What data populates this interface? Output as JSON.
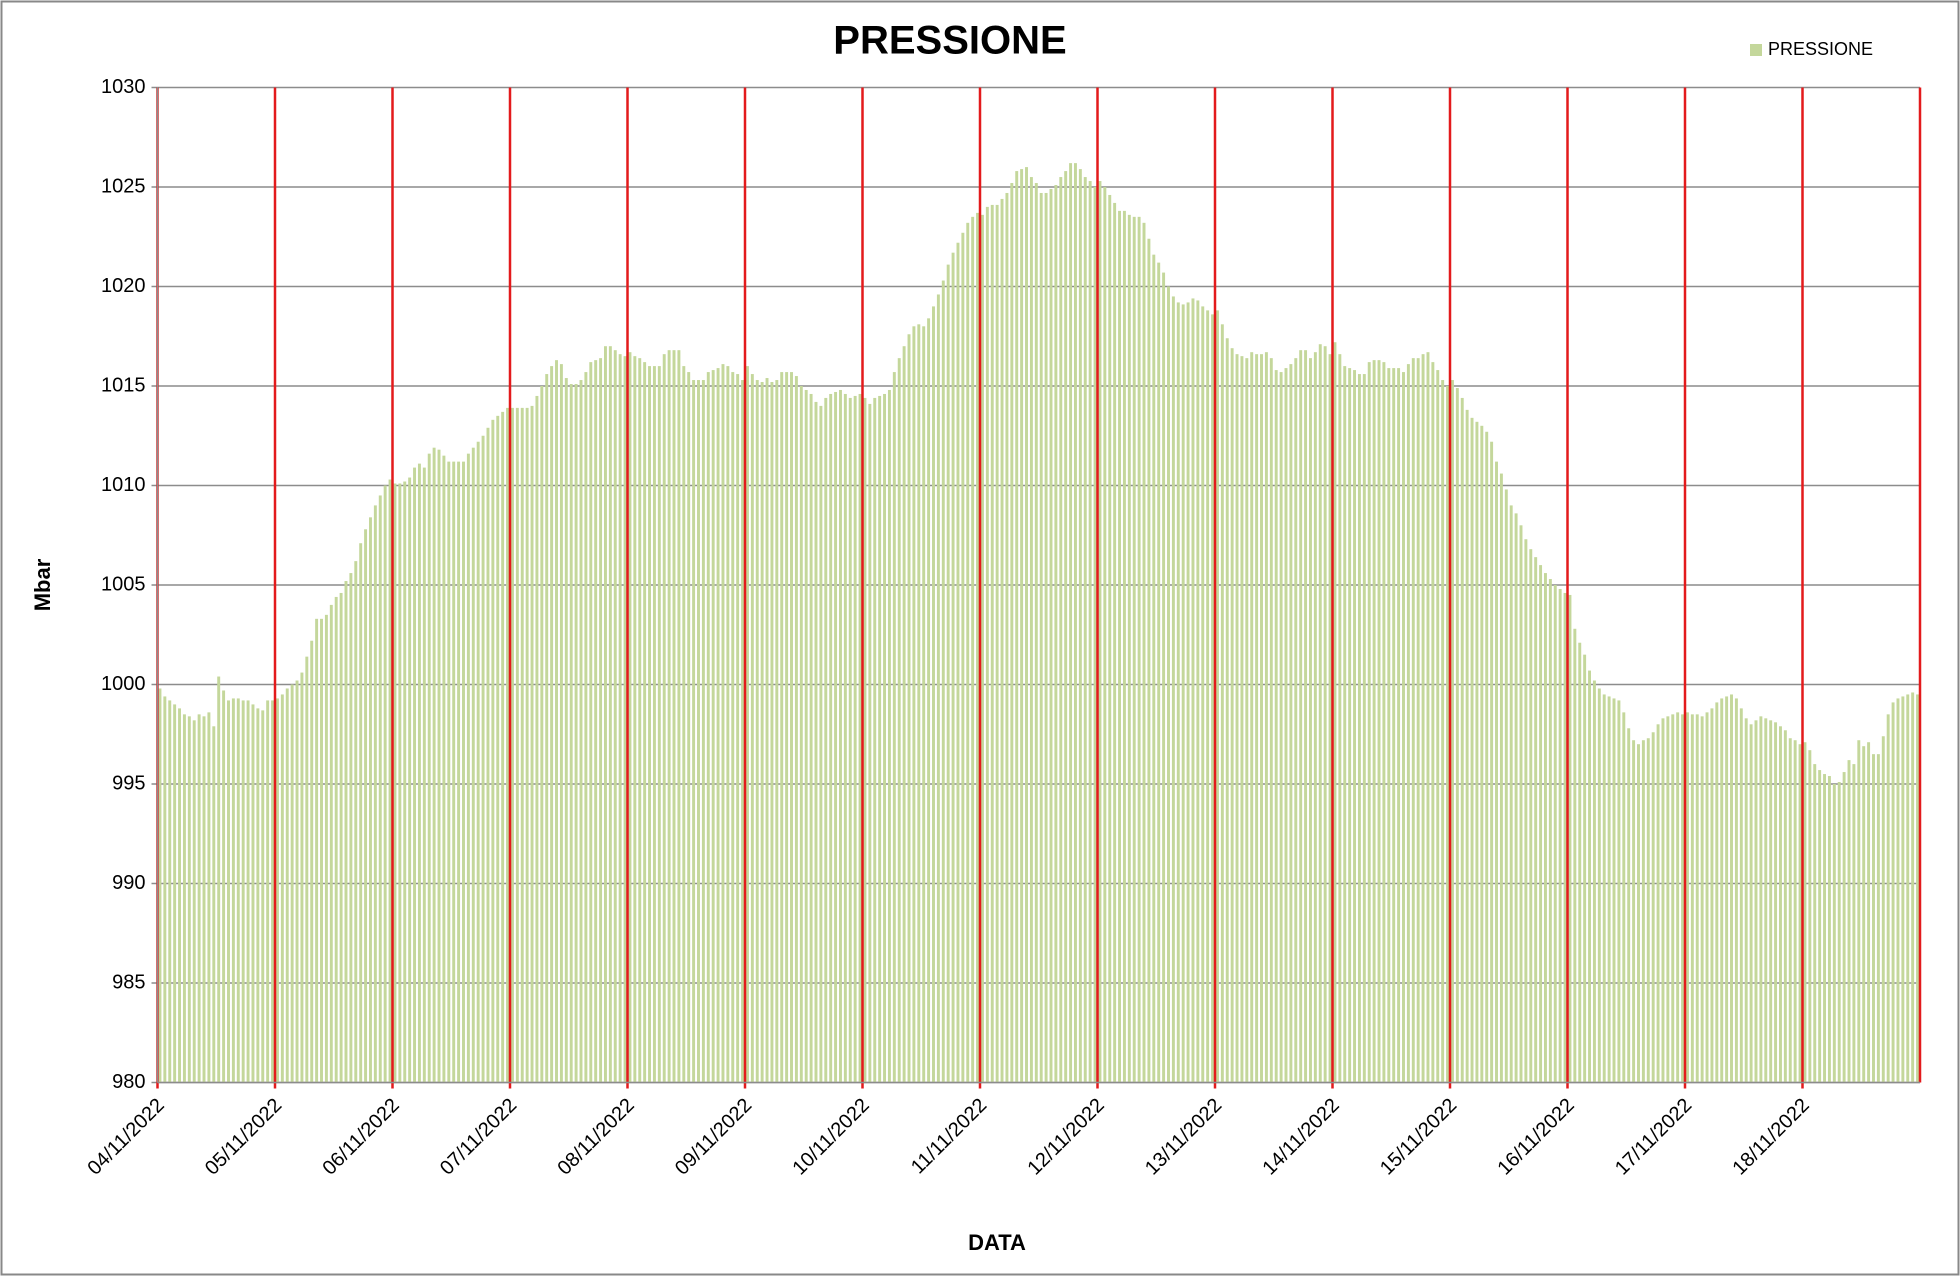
{
  "chart_data": {
    "type": "bar",
    "title": "PRESSIONE",
    "x_label": "DATA",
    "y_label": "Mbar",
    "series": [
      {
        "name": "PRESSIONE",
        "color": "#c4d79b",
        "values": [
          999.8,
          999.4,
          999.2,
          999.0,
          998.8,
          998.5,
          998.4,
          998.2,
          998.5,
          998.4,
          998.6,
          997.9,
          1000.4,
          999.7,
          999.2,
          999.3,
          999.3,
          999.2,
          999.2,
          999.0,
          998.8,
          998.7,
          999.2,
          999.2,
          999.3,
          999.5,
          999.8,
          1000.0,
          1000.2,
          1000.6,
          1001.4,
          1002.2,
          1003.3,
          1003.3,
          1003.5,
          1004.0,
          1004.4,
          1004.6,
          1005.2,
          1005.6,
          1006.2,
          1007.1,
          1007.8,
          1008.4,
          1009.0,
          1009.5,
          1010.0,
          1010.3,
          1010.1,
          1010.1,
          1010.2,
          1010.4,
          1010.9,
          1011.1,
          1010.9,
          1011.6,
          1011.9,
          1011.8,
          1011.5,
          1011.2,
          1011.2,
          1011.2,
          1011.2,
          1011.6,
          1011.9,
          1012.2,
          1012.5,
          1012.9,
          1013.3,
          1013.5,
          1013.7,
          1013.9,
          1013.9,
          1013.9,
          1013.9,
          1013.9,
          1014.0,
          1014.5,
          1015.0,
          1015.6,
          1016.0,
          1016.3,
          1016.1,
          1015.4,
          1015.1,
          1015.1,
          1015.3,
          1015.7,
          1016.2,
          1016.3,
          1016.4,
          1017.0,
          1017.0,
          1016.8,
          1016.6,
          1016.5,
          1016.7,
          1016.5,
          1016.4,
          1016.2,
          1016.0,
          1016.0,
          1016.0,
          1016.6,
          1016.8,
          1016.8,
          1016.8,
          1016.0,
          1015.7,
          1015.3,
          1015.3,
          1015.3,
          1015.7,
          1015.8,
          1015.9,
          1016.1,
          1016.0,
          1015.7,
          1015.6,
          1015.3,
          1016.0,
          1015.6,
          1015.3,
          1015.2,
          1015.4,
          1015.2,
          1015.3,
          1015.7,
          1015.7,
          1015.7,
          1015.5,
          1015.0,
          1014.8,
          1014.6,
          1014.2,
          1014.0,
          1014.4,
          1014.6,
          1014.7,
          1014.8,
          1014.6,
          1014.4,
          1014.5,
          1014.6,
          1014.4,
          1014.1,
          1014.4,
          1014.5,
          1014.6,
          1014.8,
          1015.7,
          1016.4,
          1017.0,
          1017.6,
          1018.0,
          1018.1,
          1018.0,
          1018.4,
          1019.0,
          1019.6,
          1020.3,
          1021.1,
          1021.7,
          1022.2,
          1022.7,
          1023.2,
          1023.5,
          1023.7,
          1023.6,
          1024.0,
          1024.1,
          1024.1,
          1024.4,
          1024.7,
          1025.2,
          1025.8,
          1025.9,
          1026.0,
          1025.5,
          1025.2,
          1024.7,
          1024.7,
          1024.9,
          1025.1,
          1025.5,
          1025.8,
          1026.2,
          1026.2,
          1025.9,
          1025.5,
          1025.3,
          1025.0,
          1025.3,
          1025.0,
          1024.6,
          1024.2,
          1023.8,
          1023.8,
          1023.6,
          1023.5,
          1023.5,
          1023.2,
          1022.4,
          1021.6,
          1021.2,
          1020.7,
          1020.0,
          1019.5,
          1019.2,
          1019.1,
          1019.2,
          1019.4,
          1019.3,
          1019.0,
          1018.8,
          1018.6,
          1018.8,
          1018.1,
          1017.4,
          1016.9,
          1016.6,
          1016.5,
          1016.4,
          1016.7,
          1016.6,
          1016.6,
          1016.7,
          1016.4,
          1015.8,
          1015.7,
          1015.9,
          1016.1,
          1016.4,
          1016.8,
          1016.8,
          1016.4,
          1016.7,
          1017.1,
          1017.0,
          1016.6,
          1017.2,
          1016.6,
          1016.0,
          1015.9,
          1015.8,
          1015.6,
          1015.6,
          1016.2,
          1016.3,
          1016.3,
          1016.2,
          1015.9,
          1015.9,
          1015.9,
          1015.7,
          1016.1,
          1016.4,
          1016.4,
          1016.6,
          1016.7,
          1016.2,
          1015.8,
          1015.3,
          1015.0,
          1015.3,
          1014.9,
          1014.4,
          1013.8,
          1013.4,
          1013.2,
          1013.0,
          1012.7,
          1012.2,
          1011.2,
          1010.6,
          1009.8,
          1009.0,
          1008.6,
          1008.0,
          1007.3,
          1006.8,
          1006.4,
          1006.0,
          1005.6,
          1005.3,
          1005.0,
          1004.8,
          1004.6,
          1004.5,
          1002.8,
          1002.1,
          1001.5,
          1000.7,
          1000.2,
          999.8,
          999.5,
          999.4,
          999.3,
          999.2,
          998.6,
          997.8,
          997.2,
          997.0,
          997.2,
          997.3,
          997.6,
          998.0,
          998.3,
          998.4,
          998.5,
          998.6,
          998.5,
          998.6,
          998.5,
          998.5,
          998.4,
          998.6,
          998.8,
          999.1,
          999.3,
          999.4,
          999.5,
          999.3,
          998.8,
          998.3,
          998.0,
          998.2,
          998.4,
          998.3,
          998.2,
          998.1,
          997.9,
          997.7,
          997.3,
          997.2,
          997.0,
          997.1,
          996.7,
          996.0,
          995.7,
          995.5,
          995.4,
          995.0,
          995.1,
          995.6,
          996.2,
          996.0,
          997.2,
          996.9,
          997.1,
          996.5,
          996.5,
          997.4,
          998.5,
          999.1,
          999.3,
          999.4,
          999.5,
          999.6,
          999.5
        ]
      }
    ],
    "categories": [
      "04/11/2022",
      null,
      null,
      null,
      null,
      null,
      null,
      null,
      null,
      null,
      null,
      null,
      null,
      null,
      null,
      null,
      null,
      null,
      null,
      null,
      null,
      null,
      null,
      null,
      "05/11/2022",
      null,
      null,
      null,
      null,
      null,
      null,
      null,
      null,
      null,
      null,
      null,
      null,
      null,
      null,
      null,
      null,
      null,
      null,
      null,
      null,
      null,
      null,
      null,
      "06/11/2022",
      null,
      null,
      null,
      null,
      null,
      null,
      null,
      null,
      null,
      null,
      null,
      null,
      null,
      null,
      null,
      null,
      null,
      null,
      null,
      null,
      null,
      null,
      null,
      "07/11/2022",
      null,
      null,
      null,
      null,
      null,
      null,
      null,
      null,
      null,
      null,
      null,
      null,
      null,
      null,
      null,
      null,
      null,
      null,
      null,
      null,
      null,
      null,
      null,
      "08/11/2022",
      null,
      null,
      null,
      null,
      null,
      null,
      null,
      null,
      null,
      null,
      null,
      null,
      null,
      null,
      null,
      null,
      null,
      null,
      null,
      null,
      null,
      null,
      null,
      "09/11/2022",
      null,
      null,
      null,
      null,
      null,
      null,
      null,
      null,
      null,
      null,
      null,
      null,
      null,
      null,
      null,
      null,
      null,
      null,
      null,
      null,
      null,
      null,
      null,
      "10/11/2022",
      null,
      null,
      null,
      null,
      null,
      null,
      null,
      null,
      null,
      null,
      null,
      null,
      null,
      null,
      null,
      null,
      null,
      null,
      null,
      null,
      null,
      null,
      null,
      "11/11/2022",
      null,
      null,
      null,
      null,
      null,
      null,
      null,
      null,
      null,
      null,
      null,
      null,
      null,
      null,
      null,
      null,
      null,
      null,
      null,
      null,
      null,
      null,
      null,
      "12/11/2022",
      null,
      null,
      null,
      null,
      null,
      null,
      null,
      null,
      null,
      null,
      null,
      null,
      null,
      null,
      null,
      null,
      null,
      null,
      null,
      null,
      null,
      null,
      null,
      "13/11/2022",
      null,
      null,
      null,
      null,
      null,
      null,
      null,
      null,
      null,
      null,
      null,
      null,
      null,
      null,
      null,
      null,
      null,
      null,
      null,
      null,
      null,
      null,
      null,
      "14/11/2022",
      null,
      null,
      null,
      null,
      null,
      null,
      null,
      null,
      null,
      null,
      null,
      null,
      null,
      null,
      null,
      null,
      null,
      null,
      null,
      null,
      null,
      null,
      null,
      "15/11/2022",
      null,
      null,
      null,
      null,
      null,
      null,
      null,
      null,
      null,
      null,
      null,
      null,
      null,
      null,
      null,
      null,
      null,
      null,
      null,
      null,
      null,
      null,
      null,
      "16/11/2022",
      null,
      null,
      null,
      null,
      null,
      null,
      null,
      null,
      null,
      null,
      null,
      null,
      null,
      null,
      null,
      null,
      null,
      null,
      null,
      null,
      null,
      null,
      null,
      "17/11/2022",
      null,
      null,
      null,
      null,
      null,
      null,
      null,
      null,
      null,
      null,
      null,
      null,
      null,
      null,
      null,
      null,
      null,
      null,
      null,
      null,
      null,
      null,
      null,
      "18/11/2022",
      null,
      null,
      null,
      null,
      null,
      null,
      null,
      null,
      null,
      null,
      null,
      null,
      null,
      null,
      null,
      null,
      null,
      null,
      null,
      null,
      null,
      null,
      null
    ],
    "ylim": [
      980,
      1030
    ],
    "yticks": [
      980,
      985,
      990,
      995,
      1000,
      1005,
      1010,
      1015,
      1020,
      1025,
      1030
    ],
    "grid": true,
    "xgrid_color": "#e31a1c",
    "legend": "top-right"
  }
}
